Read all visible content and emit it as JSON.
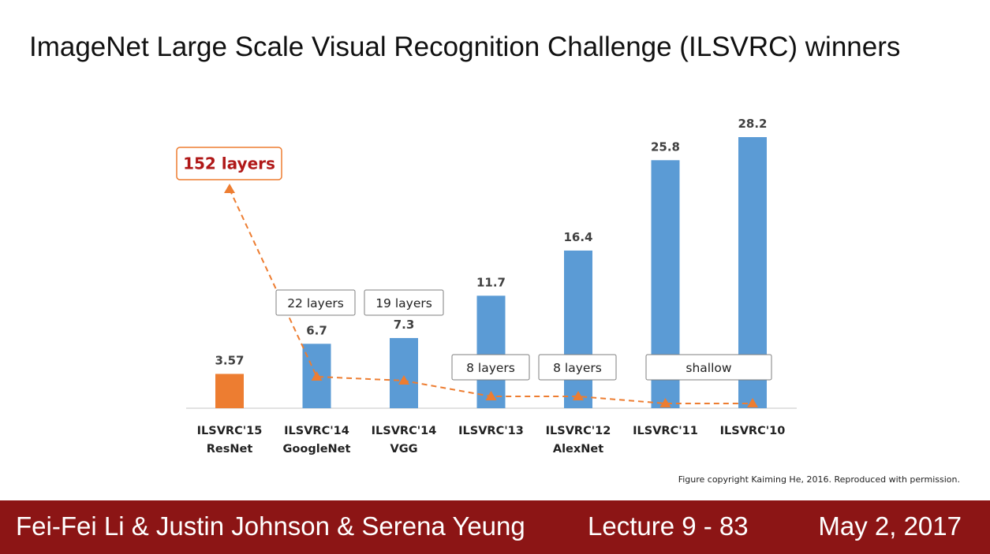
{
  "slide": {
    "title": "ImageNet Large Scale Visual Recognition Challenge (ILSVRC) winners",
    "copyright": "Figure copyright Kaiming He, 2016. Reproduced with permission."
  },
  "footer": {
    "authors": "Fei-Fei Li & Justin Johnson & Serena Yeung",
    "lecture": "Lecture 9 - 83",
    "date": "May 2, 2017"
  },
  "colors": {
    "highlight_bar": "#ed7d31",
    "bar": "#5b9bd5",
    "line": "#ed7d31",
    "footer_bg": "#8c1515",
    "highlight_text": "#b01818"
  },
  "chart_data": {
    "type": "bar",
    "categories": [
      [
        "ILSVRC'15",
        "ResNet"
      ],
      [
        "ILSVRC'14",
        "GoogleNet"
      ],
      [
        "ILSVRC'14",
        "VGG"
      ],
      [
        "ILSVRC'13",
        ""
      ],
      [
        "ILSVRC'12",
        "AlexNet"
      ],
      [
        "ILSVRC'11",
        ""
      ],
      [
        "ILSVRC'10",
        ""
      ]
    ],
    "values": [
      3.57,
      6.7,
      7.3,
      11.7,
      16.4,
      25.8,
      28.2
    ],
    "value_labels": [
      "3.57",
      "6.7",
      "7.3",
      "11.7",
      "16.4",
      "25.8",
      "28.2"
    ],
    "highlight_index": 0,
    "ylim": [
      0,
      30
    ],
    "grid": false,
    "layers_line": {
      "style": "dashed",
      "marker": "triangle",
      "values": [
        152,
        22,
        19,
        8,
        8,
        8,
        8
      ]
    },
    "layer_boxes": [
      {
        "text": "152 layers",
        "highlight": true
      },
      {
        "text": "22 layers"
      },
      {
        "text": "19 layers"
      },
      {
        "text": "8 layers"
      },
      {
        "text": "8 layers"
      },
      {
        "text": "shallow"
      }
    ]
  }
}
